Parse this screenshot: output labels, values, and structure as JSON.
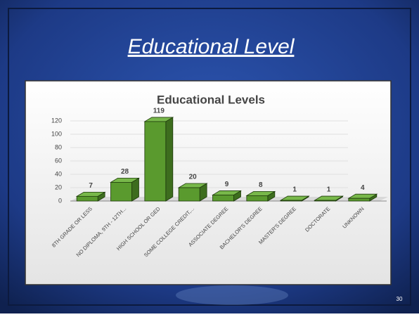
{
  "slide": {
    "title": "Educational Level",
    "page_number": "30"
  },
  "chart_data": {
    "type": "bar3d",
    "title": "Educational Levels",
    "categories": [
      "8TH GRADE OR LESS",
      "NO DIPLOMA, 9TH - 12TH...",
      "HIGH SCHOOL OR GED",
      "SOME COLLEGE CREDIT,...",
      "ASSOCIATE DEGREE",
      "BACHELOR'S DEGREE",
      "MASTER'S DEGREE",
      "DOCTORATE",
      "UNKNOWN"
    ],
    "values": [
      7,
      28,
      119,
      20,
      9,
      8,
      1,
      1,
      4
    ],
    "color": "#5a9a2e",
    "ylim": [
      0,
      120
    ],
    "yticks": [
      0,
      20,
      40,
      60,
      80,
      100,
      120
    ],
    "grid": true
  }
}
